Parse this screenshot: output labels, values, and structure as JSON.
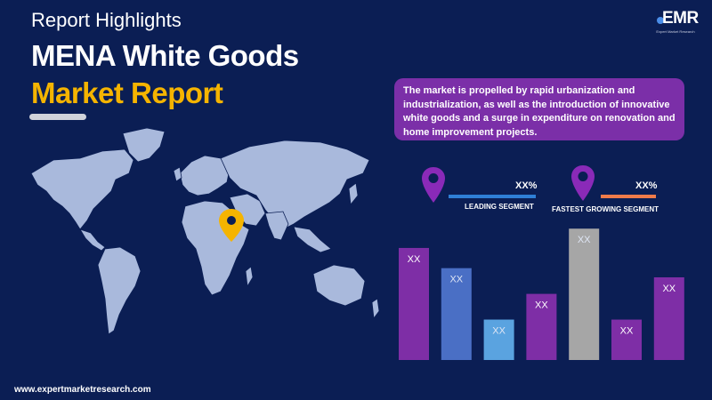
{
  "header": {
    "subtitle": "Report Highlights",
    "title_line1": "MENA White Goods",
    "title_line2": "Market Report"
  },
  "logo": {
    "text": "EMR",
    "tagline": "Expert Market Research"
  },
  "info": {
    "text": "The market is propelled by rapid urbanization and industrialization, as well as the introduction of innovative white goods and a surge in expenditure on renovation and home improvement projects."
  },
  "segments": {
    "leading": {
      "value": "XX%",
      "label": "LEADING SEGMENT",
      "color": "#2f7fd6"
    },
    "fastest": {
      "value": "XX%",
      "label": "FASTEST GROWING SEGMENT",
      "color": "#ef7b4a"
    }
  },
  "colors": {
    "background": "#0b1e54",
    "accent_yellow": "#f5b400",
    "pin_purple": "#8a2ab8",
    "map_fill": "#a9b9dc"
  },
  "chart_data": {
    "type": "bar",
    "categories": [
      "",
      "",
      "",
      "",
      "",
      "",
      ""
    ],
    "values": [
      122,
      100,
      44,
      72,
      143,
      44,
      90
    ],
    "data_labels": [
      "XX",
      "XX",
      "XX",
      "XX",
      "XX",
      "XX",
      "XX"
    ],
    "bar_colors": [
      "#7e2ea6",
      "#4a6fc5",
      "#5aa3e0",
      "#7e2ea6",
      "#a6a6a6",
      "#7e2ea6",
      "#7e2ea6"
    ],
    "ylim": [
      0,
      150
    ],
    "grid": false
  },
  "footer": {
    "url": "www.expertmarketresearch.com"
  }
}
